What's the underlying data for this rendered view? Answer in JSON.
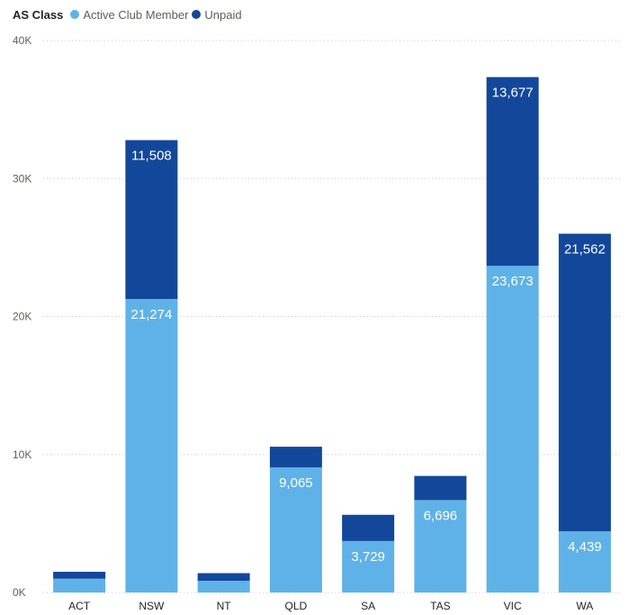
{
  "legend": {
    "title": "AS Class",
    "items": [
      {
        "label": "Active Club Member",
        "color": "#5fb2e8"
      },
      {
        "label": "Unpaid",
        "color": "#12479a"
      }
    ]
  },
  "chart_data": {
    "type": "bar",
    "stacked": true,
    "title": "",
    "xlabel": "",
    "ylabel": "",
    "categories": [
      "ACT",
      "NSW",
      "NT",
      "QLD",
      "SA",
      "TAS",
      "VIC",
      "WA"
    ],
    "series": [
      {
        "name": "Active Club Member",
        "color": "#5fb2e8",
        "values": [
          1000,
          21274,
          850,
          9065,
          3729,
          6696,
          23673,
          4439
        ],
        "labels": [
          "",
          "21,274",
          "",
          "9,065",
          "3,729",
          "6,696",
          "23,673",
          "4,439"
        ]
      },
      {
        "name": "Unpaid",
        "color": "#12479a",
        "values": [
          500,
          11508,
          550,
          1500,
          1900,
          1750,
          13677,
          21562
        ],
        "labels": [
          "",
          "11,508",
          "",
          "",
          "",
          "",
          "13,677",
          "21,562"
        ]
      }
    ],
    "ylim": [
      0,
      40000
    ],
    "yticks": [
      0,
      10000,
      20000,
      30000,
      40000
    ],
    "ytick_labels": [
      "0K",
      "10K",
      "20K",
      "30K",
      "40K"
    ],
    "grid": true,
    "legend_position": "top-left"
  }
}
